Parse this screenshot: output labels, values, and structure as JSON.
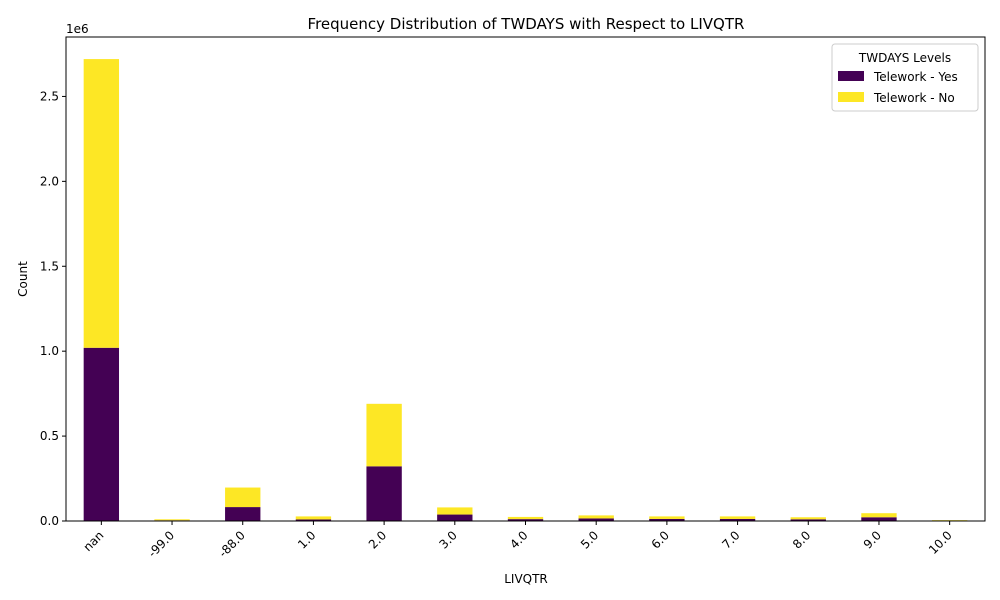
{
  "chart_data": {
    "type": "bar",
    "stacked": true,
    "title": "Frequency Distribution of TWDAYS with Respect to LIVQTR",
    "xlabel": "LIVQTR",
    "ylabel": "Count",
    "y_offset_label": "1e6",
    "categories": [
      "nan",
      "-99.0",
      "-88.0",
      "1.0",
      "2.0",
      "3.0",
      "4.0",
      "5.0",
      "6.0",
      "7.0",
      "8.0",
      "9.0",
      "10.0"
    ],
    "series": [
      {
        "name": "Telework - Yes",
        "color": "#440154",
        "values": [
          1020000,
          4000,
          82000,
          9000,
          322000,
          38000,
          11000,
          15000,
          12000,
          12000,
          10000,
          22000,
          3000
        ]
      },
      {
        "name": "Telework - No",
        "color": "#fde725",
        "values": [
          1700000,
          6000,
          115000,
          18000,
          368000,
          42000,
          13000,
          18000,
          15000,
          15000,
          12000,
          24000,
          2000
        ]
      }
    ],
    "ylim": [
      0,
      2850000
    ],
    "yticks": [
      0.0,
      0.5,
      1.0,
      1.5,
      2.0,
      2.5
    ],
    "ytick_scale": 1000000,
    "ytick_labels": [
      "0.0",
      "0.5",
      "1.0",
      "1.5",
      "2.0",
      "2.5"
    ],
    "legend": {
      "title": "TWDAYS Levels",
      "position": "top-right"
    },
    "grid": false
  }
}
